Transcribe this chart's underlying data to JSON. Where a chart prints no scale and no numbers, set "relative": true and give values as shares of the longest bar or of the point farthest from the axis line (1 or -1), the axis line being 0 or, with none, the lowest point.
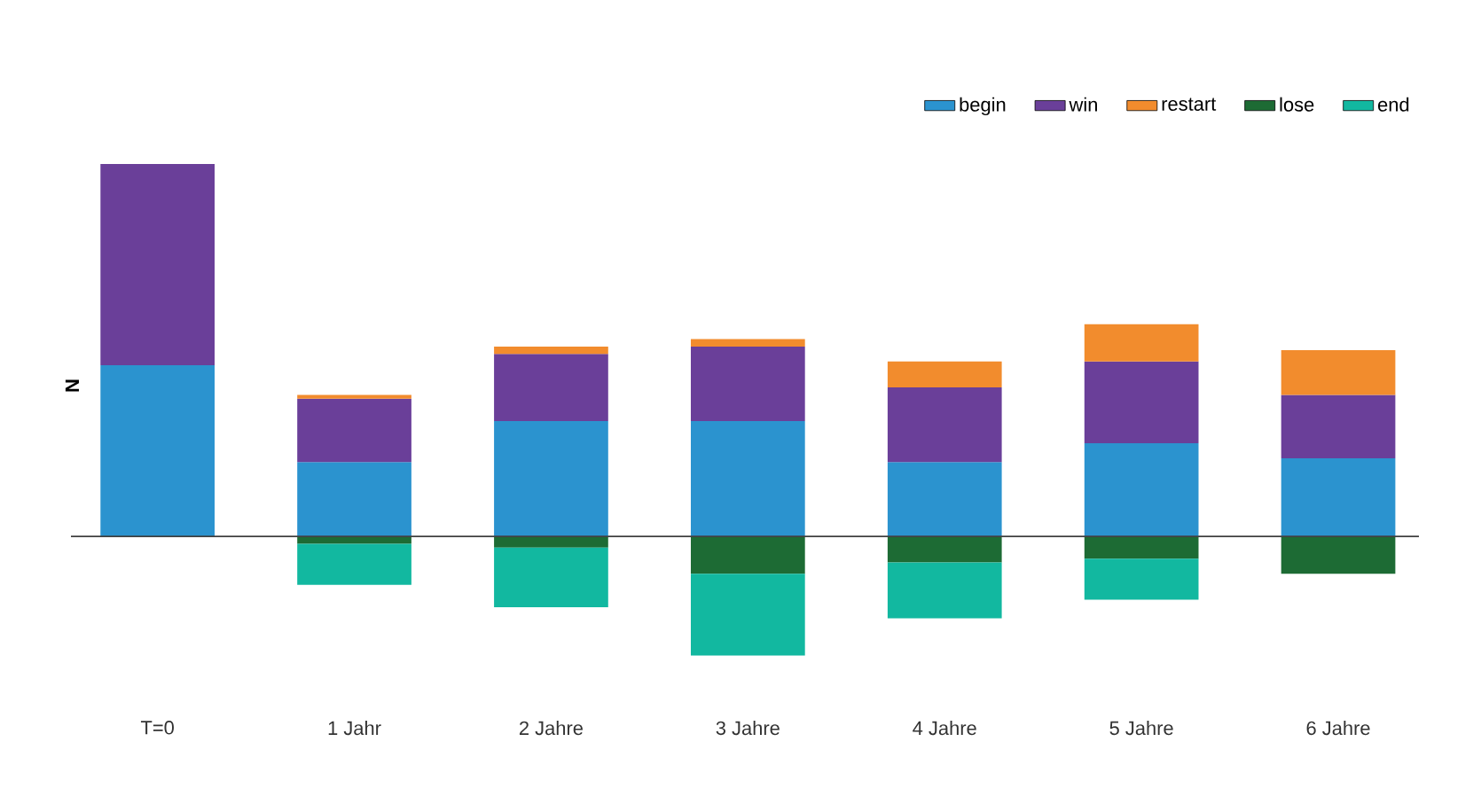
{
  "chart_data": {
    "type": "bar",
    "stacked": true,
    "relative": true,
    "ylabel": "N",
    "categories": [
      "T=0",
      "1 Jahr",
      "2 Jahre",
      "3 Jahre",
      "4 Jahre",
      "5 Jahre",
      "6 Jahre"
    ],
    "series": [
      {
        "name": "begin",
        "color": "#2b93cf",
        "values": [
          0.46,
          0.2,
          0.31,
          0.31,
          0.2,
          0.25,
          0.21
        ]
      },
      {
        "name": "win",
        "color": "#6a3f99",
        "values": [
          0.54,
          0.17,
          0.18,
          0.2,
          0.2,
          0.22,
          0.17
        ]
      },
      {
        "name": "restart",
        "color": "#f28c2d",
        "values": [
          0,
          0.01,
          0.02,
          0.02,
          0.07,
          0.1,
          0.12
        ]
      },
      {
        "name": "lose",
        "color": "#1d6b34",
        "values": [
          0,
          -0.02,
          -0.03,
          -0.1,
          -0.07,
          -0.06,
          -0.1
        ]
      },
      {
        "name": "end",
        "color": "#12b8a0",
        "values": [
          0,
          -0.11,
          -0.16,
          -0.22,
          -0.15,
          -0.11,
          0
        ]
      }
    ],
    "legend": "top right"
  }
}
